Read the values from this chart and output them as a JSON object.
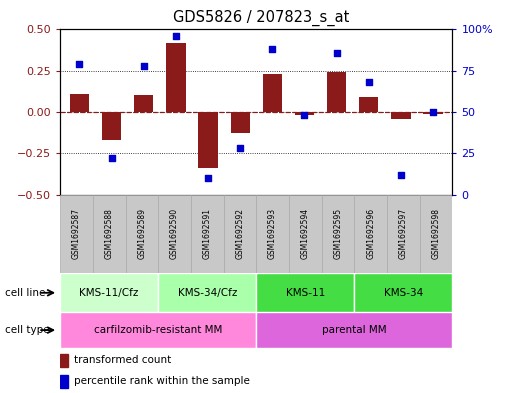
{
  "title": "GDS5826 / 207823_s_at",
  "samples": [
    "GSM1692587",
    "GSM1692588",
    "GSM1692589",
    "GSM1692590",
    "GSM1692591",
    "GSM1692592",
    "GSM1692593",
    "GSM1692594",
    "GSM1692595",
    "GSM1692596",
    "GSM1692597",
    "GSM1692598"
  ],
  "transformed_count": [
    0.11,
    -0.17,
    0.1,
    0.42,
    -0.34,
    -0.13,
    0.23,
    -0.02,
    0.24,
    0.09,
    -0.04,
    -0.01
  ],
  "percentile_rank": [
    79,
    22,
    78,
    96,
    10,
    28,
    88,
    48,
    86,
    68,
    12,
    50
  ],
  "bar_color": "#8B1A1A",
  "dot_color": "#0000CC",
  "ylim_left": [
    -0.5,
    0.5
  ],
  "ylim_right": [
    0,
    100
  ],
  "yticks_left": [
    -0.5,
    -0.25,
    0.0,
    0.25,
    0.5
  ],
  "yticks_right": [
    0,
    25,
    50,
    75,
    100
  ],
  "dotted_lines": [
    -0.25,
    0.0,
    0.25
  ],
  "cell_line_groups": [
    {
      "label": "KMS-11/Cfz",
      "start": 0,
      "end": 3,
      "color": "#CCFFCC"
    },
    {
      "label": "KMS-34/Cfz",
      "start": 3,
      "end": 6,
      "color": "#AAFFAA"
    },
    {
      "label": "KMS-11",
      "start": 6,
      "end": 9,
      "color": "#44DD44"
    },
    {
      "label": "KMS-34",
      "start": 9,
      "end": 12,
      "color": "#44DD44"
    }
  ],
  "cell_type_groups": [
    {
      "label": "carfilzomib-resistant MM",
      "start": 0,
      "end": 6,
      "color": "#FF88DD"
    },
    {
      "label": "parental MM",
      "start": 6,
      "end": 12,
      "color": "#DD66DD"
    }
  ],
  "cell_line_label": "cell line",
  "cell_type_label": "cell type",
  "legend_bar_label": "transformed count",
  "legend_dot_label": "percentile rank within the sample",
  "background_color": "#FFFFFF",
  "plot_bg_color": "#FFFFFF",
  "sample_box_color": "#C8C8C8",
  "sample_box_edge_color": "#AAAAAA"
}
